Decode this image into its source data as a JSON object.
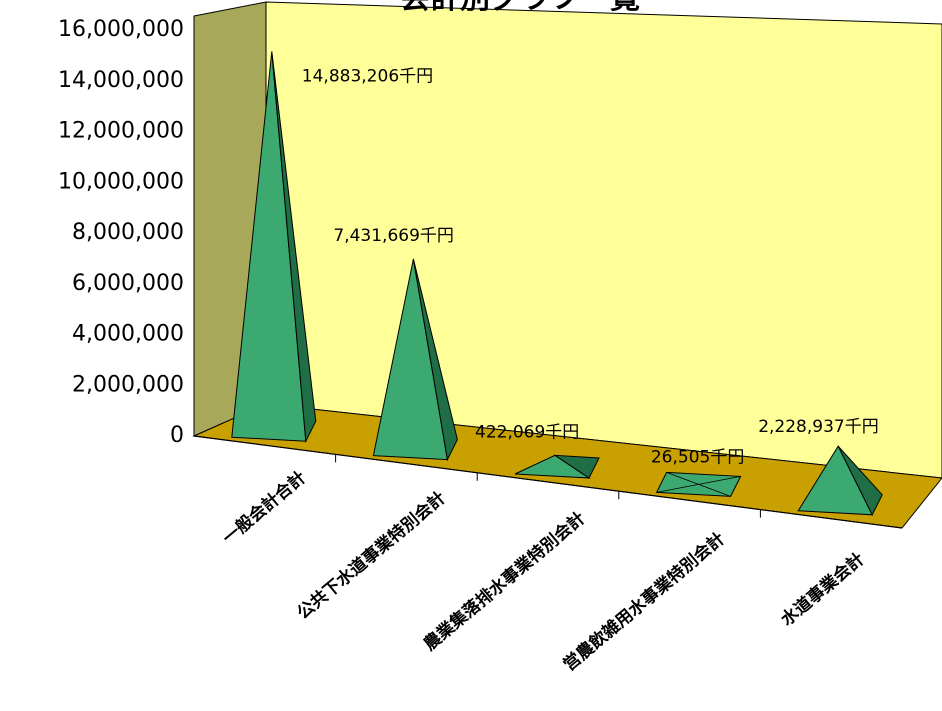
{
  "chart_data": {
    "type": "bar",
    "title": "会計別グラフ一覧",
    "categories": [
      "一般会計合計",
      "公共下水道事業特別会計",
      "農業集落排水事業特別会計",
      "営農飲雑用水事業特別会計",
      "水道事業会計"
    ],
    "values": [
      14883206,
      7431669,
      422069,
      26505,
      2228937
    ],
    "data_labels": [
      "14,883,206千円",
      "7,431,669千円",
      "422,069千円",
      "26,505千円",
      "2,228,937千円"
    ],
    "y_ticks": [
      "0",
      "2,000,000",
      "4,000,000",
      "6,000,000",
      "8,000,000",
      "10,000,000",
      "12,000,000",
      "14,000,000",
      "16,000,000"
    ],
    "ylim": [
      0,
      16000000
    ],
    "grid": false,
    "legend": "none",
    "colors": {
      "back_wall": "#ffff99",
      "side_wall": "#a8a85a",
      "floor": "#c8a000",
      "pyramid_face": "#3caa70",
      "pyramid_dark": "#1f6e45"
    }
  }
}
